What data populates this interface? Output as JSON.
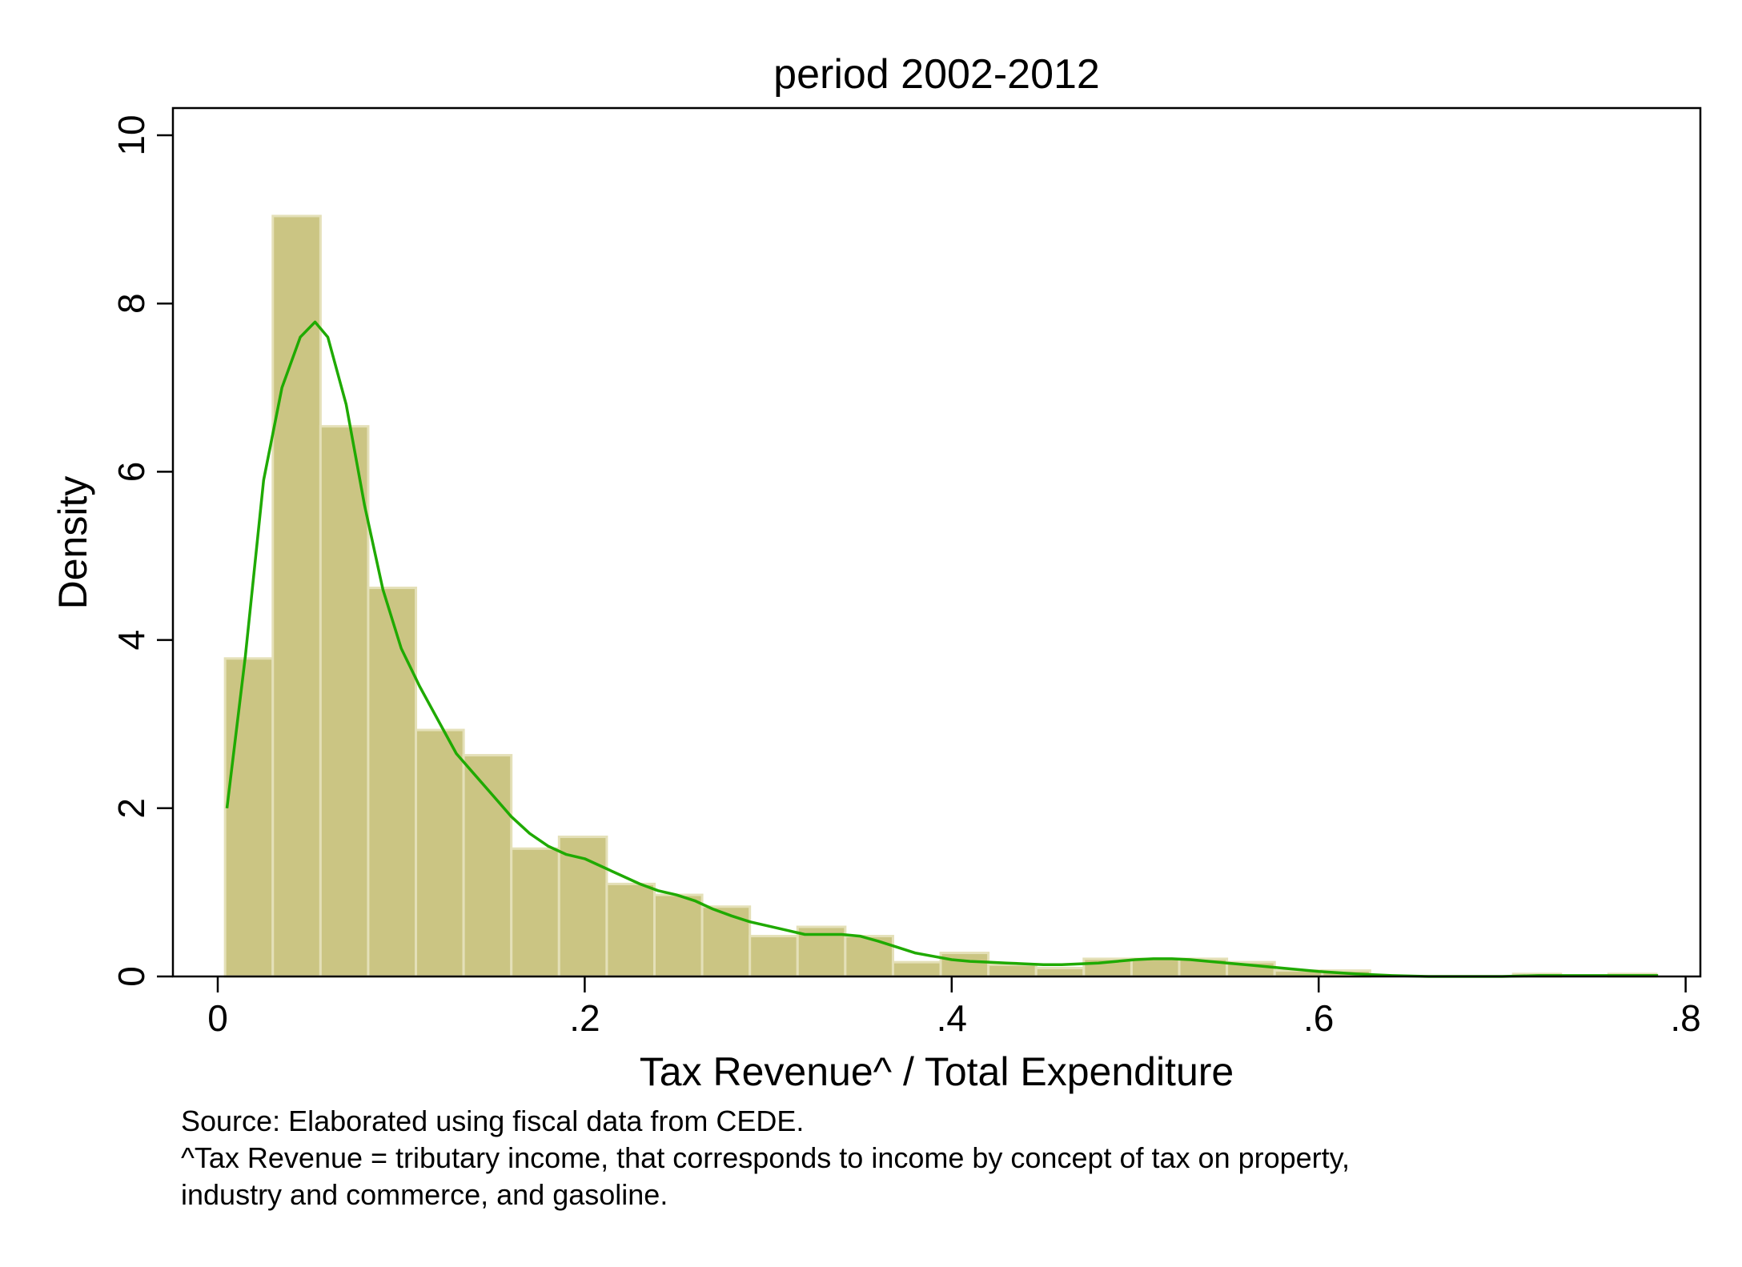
{
  "chart_data": {
    "type": "bar",
    "title": "period 2002-2012",
    "xlabel": "Tax Revenue^ / Total Expenditure",
    "ylabel": "Density",
    "xlim": [
      -0.01,
      0.81
    ],
    "ylim": [
      0,
      10.3
    ],
    "x_ticks": [
      0,
      0.2,
      0.4,
      0.6,
      0.8
    ],
    "x_tick_labels": [
      "0",
      ".2",
      ".4",
      ".6",
      ".8"
    ],
    "y_ticks": [
      0,
      2,
      4,
      6,
      8,
      10
    ],
    "y_tick_labels": [
      "0",
      "2",
      "4",
      "6",
      "8",
      "10"
    ],
    "grid": false,
    "bin_width": 0.026,
    "bins": [
      {
        "x0": 0.004,
        "x1": 0.03,
        "density": 3.78
      },
      {
        "x0": 0.03,
        "x1": 0.056,
        "density": 9.04
      },
      {
        "x0": 0.056,
        "x1": 0.082,
        "density": 6.54
      },
      {
        "x0": 0.082,
        "x1": 0.108,
        "density": 4.62
      },
      {
        "x0": 0.108,
        "x1": 0.134,
        "density": 2.93
      },
      {
        "x0": 0.134,
        "x1": 0.16,
        "density": 2.63
      },
      {
        "x0": 0.16,
        "x1": 0.186,
        "density": 1.52
      },
      {
        "x0": 0.186,
        "x1": 0.212,
        "density": 1.66
      },
      {
        "x0": 0.212,
        "x1": 0.238,
        "density": 1.1
      },
      {
        "x0": 0.238,
        "x1": 0.264,
        "density": 0.97
      },
      {
        "x0": 0.264,
        "x1": 0.29,
        "density": 0.83
      },
      {
        "x0": 0.29,
        "x1": 0.316,
        "density": 0.48
      },
      {
        "x0": 0.316,
        "x1": 0.342,
        "density": 0.59
      },
      {
        "x0": 0.342,
        "x1": 0.368,
        "density": 0.48
      },
      {
        "x0": 0.368,
        "x1": 0.394,
        "density": 0.17
      },
      {
        "x0": 0.394,
        "x1": 0.42,
        "density": 0.28
      },
      {
        "x0": 0.42,
        "x1": 0.446,
        "density": 0.14
      },
      {
        "x0": 0.446,
        "x1": 0.472,
        "density": 0.1
      },
      {
        "x0": 0.472,
        "x1": 0.498,
        "density": 0.21
      },
      {
        "x0": 0.498,
        "x1": 0.524,
        "density": 0.21
      },
      {
        "x0": 0.524,
        "x1": 0.55,
        "density": 0.21
      },
      {
        "x0": 0.55,
        "x1": 0.576,
        "density": 0.17
      },
      {
        "x0": 0.576,
        "x1": 0.602,
        "density": 0.07
      },
      {
        "x0": 0.602,
        "x1": 0.628,
        "density": 0.07
      },
      {
        "x0": 0.628,
        "x1": 0.654,
        "density": 0.0
      },
      {
        "x0": 0.654,
        "x1": 0.68,
        "density": 0.0
      },
      {
        "x0": 0.68,
        "x1": 0.706,
        "density": 0.0
      },
      {
        "x0": 0.706,
        "x1": 0.732,
        "density": 0.03
      },
      {
        "x0": 0.732,
        "x1": 0.758,
        "density": 0.0
      },
      {
        "x0": 0.758,
        "x1": 0.784,
        "density": 0.03
      }
    ],
    "density_curve": {
      "x": [
        0.005,
        0.015,
        0.025,
        0.035,
        0.045,
        0.053,
        0.06,
        0.07,
        0.08,
        0.09,
        0.1,
        0.11,
        0.12,
        0.13,
        0.14,
        0.15,
        0.16,
        0.17,
        0.18,
        0.19,
        0.2,
        0.21,
        0.22,
        0.23,
        0.24,
        0.25,
        0.26,
        0.27,
        0.28,
        0.29,
        0.3,
        0.31,
        0.32,
        0.33,
        0.34,
        0.35,
        0.36,
        0.37,
        0.38,
        0.39,
        0.4,
        0.41,
        0.42,
        0.43,
        0.44,
        0.45,
        0.46,
        0.47,
        0.48,
        0.49,
        0.5,
        0.51,
        0.52,
        0.53,
        0.54,
        0.55,
        0.56,
        0.57,
        0.58,
        0.59,
        0.6,
        0.62,
        0.64,
        0.66,
        0.68,
        0.7,
        0.72,
        0.74,
        0.76,
        0.785
      ],
      "y": [
        2.0,
        3.8,
        5.9,
        7.0,
        7.6,
        7.78,
        7.6,
        6.8,
        5.6,
        4.6,
        3.9,
        3.45,
        3.05,
        2.65,
        2.4,
        2.15,
        1.9,
        1.7,
        1.55,
        1.45,
        1.4,
        1.3,
        1.2,
        1.1,
        1.02,
        0.97,
        0.9,
        0.8,
        0.72,
        0.65,
        0.6,
        0.55,
        0.5,
        0.5,
        0.5,
        0.48,
        0.42,
        0.35,
        0.28,
        0.24,
        0.2,
        0.18,
        0.17,
        0.16,
        0.15,
        0.14,
        0.14,
        0.15,
        0.16,
        0.18,
        0.2,
        0.21,
        0.21,
        0.2,
        0.18,
        0.16,
        0.14,
        0.12,
        0.1,
        0.08,
        0.06,
        0.03,
        0.01,
        0.0,
        0.0,
        0.0,
        0.01,
        0.01,
        0.01,
        0.01
      ]
    },
    "colors": {
      "bars": "#cbc583",
      "bar_edge": "#e4e0b8",
      "curve": "#1faa00",
      "axis": "#000000"
    }
  },
  "notes": [
    "Source: Elaborated using fiscal data from CEDE.",
    "^Tax Revenue = tributary income, that corresponds to income by concept of tax on property,",
    "industry and commerce, and gasoline."
  ]
}
